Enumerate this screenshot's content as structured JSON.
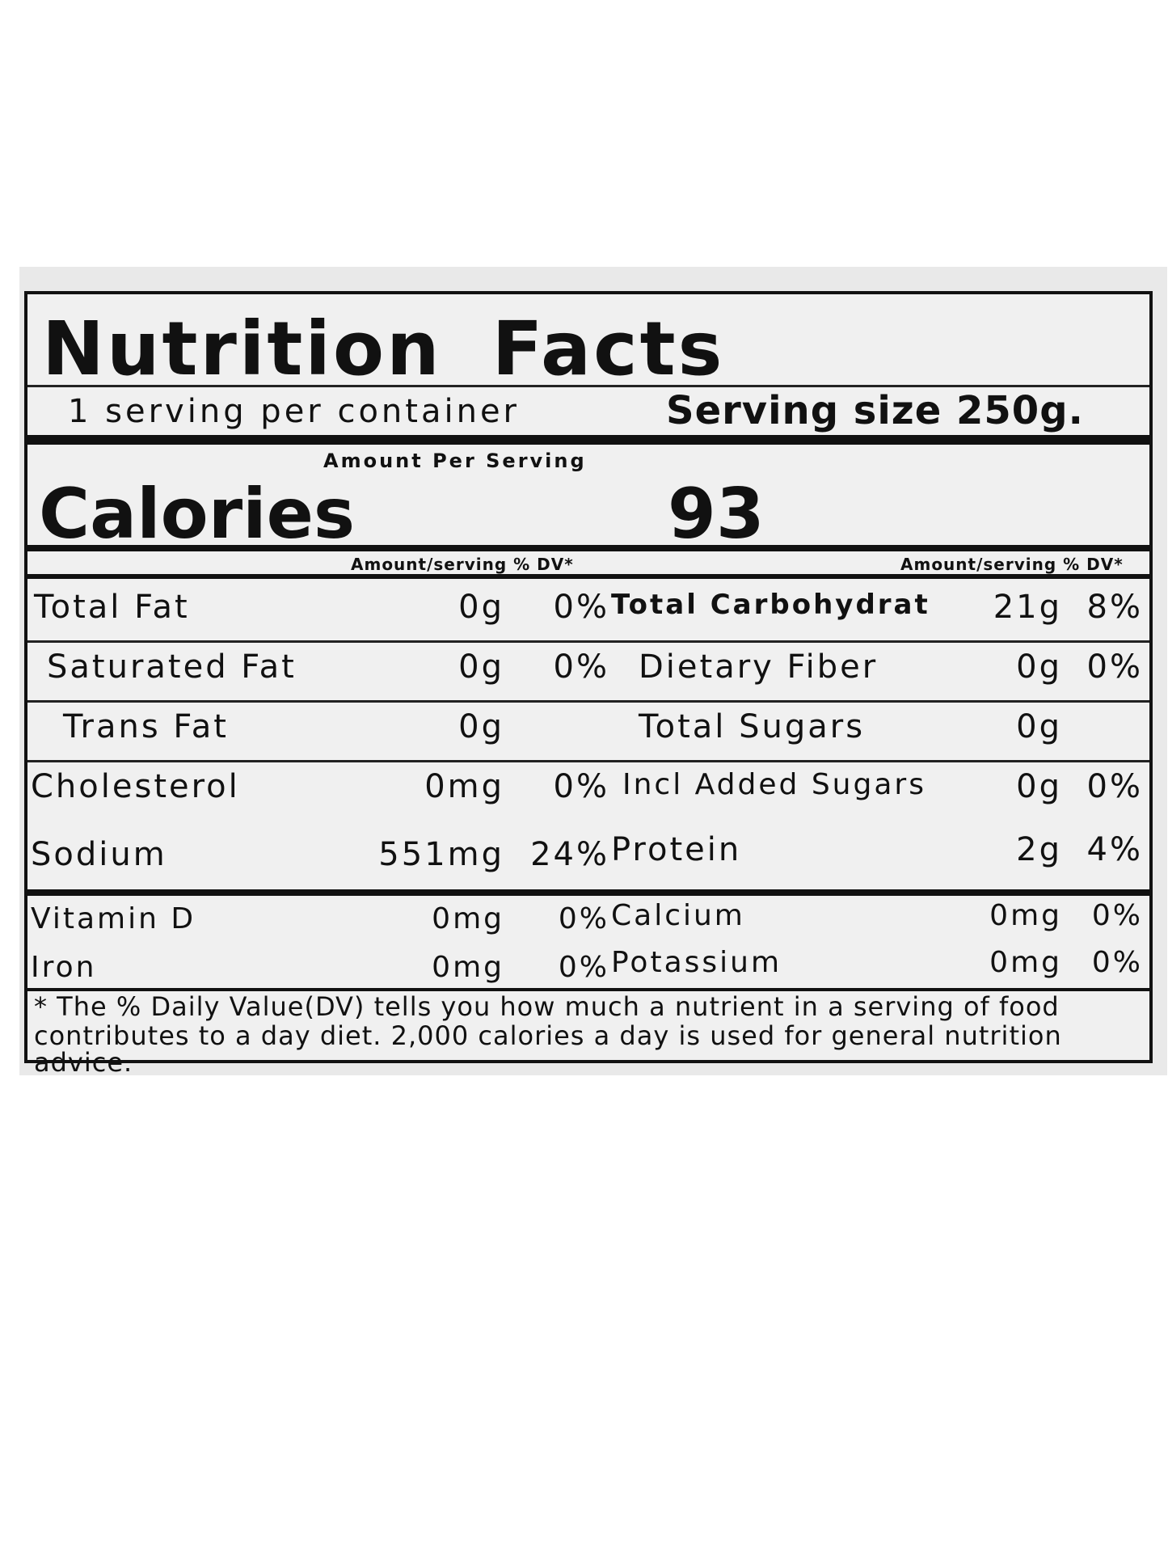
{
  "title": {
    "word1": "Nutrition",
    "word2": "Facts"
  },
  "servings": {
    "per_container": "1 serving per container",
    "serving_size": "Serving size 250g."
  },
  "calories": {
    "amount_per_serving": "Amount Per Serving",
    "label": "Calories",
    "value": "93"
  },
  "column_header": "Amount/serving % DV*",
  "left_nutrients": [
    {
      "name": "Total Fat",
      "amount": "0g",
      "dv": "0%"
    },
    {
      "name": "Saturated Fat",
      "amount": "0g",
      "dv": "0%"
    },
    {
      "name": "Trans Fat",
      "amount": "0g",
      "dv": ""
    },
    {
      "name": "Cholesterol",
      "amount": "0mg",
      "dv": "0%"
    },
    {
      "name": "Sodium",
      "amount": "551mg",
      "dv": "24%"
    }
  ],
  "right_nutrients": [
    {
      "name": "Total Carbohydrat",
      "amount": "21g",
      "dv": "8%"
    },
    {
      "name": "Dietary Fiber",
      "amount": "0g",
      "dv": "0%"
    },
    {
      "name": "Total Sugars",
      "amount": "0g",
      "dv": ""
    },
    {
      "name": "Incl Added Sugars",
      "amount": "0g",
      "dv": "0%"
    },
    {
      "name": "Protein",
      "amount": "2g",
      "dv": "4%"
    }
  ],
  "vitamins_left": [
    {
      "name": "Vitamin D",
      "amount": "0mg",
      "dv": "0%"
    },
    {
      "name": "Iron",
      "amount": "0mg",
      "dv": "0%"
    }
  ],
  "vitamins_right": [
    {
      "name": "Calcium",
      "amount": "0mg",
      "dv": "0%"
    },
    {
      "name": "Potassium",
      "amount": "0mg",
      "dv": "0%"
    }
  ],
  "footnote": {
    "line1": "* The % Daily Value(DV) tells you how much a nutrient  in  a serving of food",
    "line2": "contributes to a day  diet.  2,000 calories a day is used for general nutrition",
    "line3": "advice."
  }
}
